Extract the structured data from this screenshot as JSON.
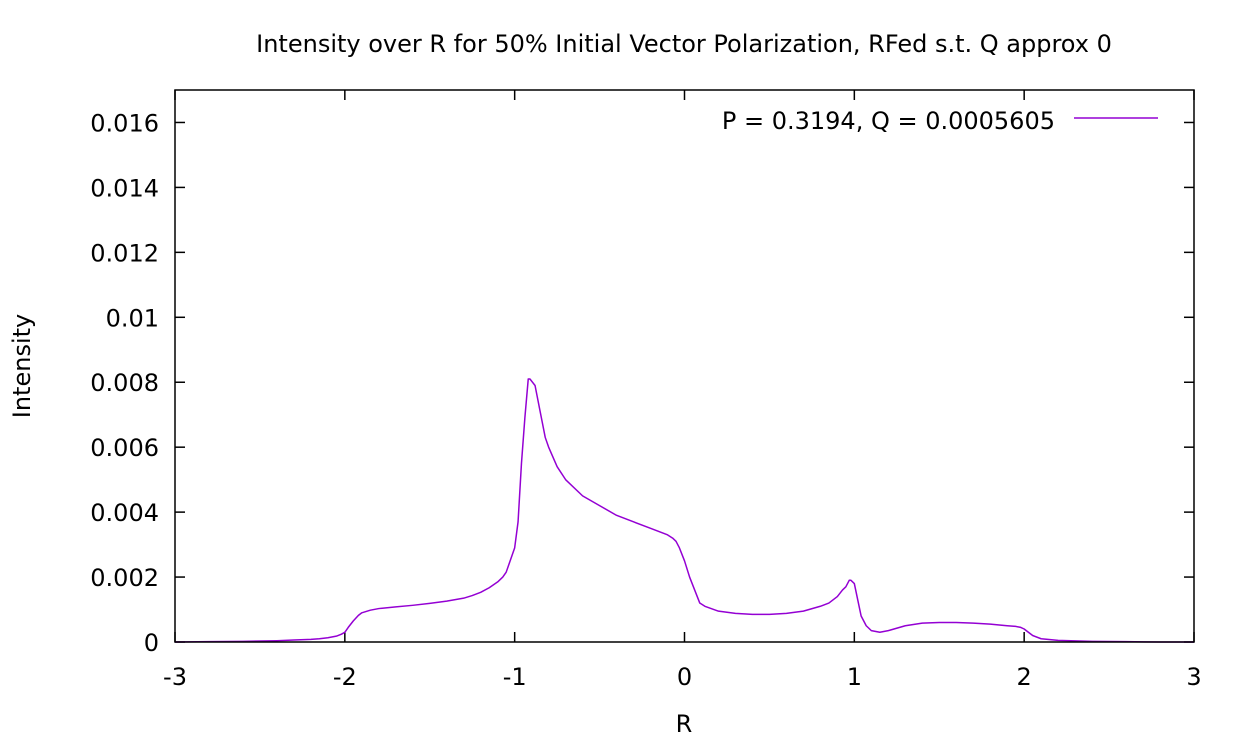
{
  "chart_data": {
    "type": "line",
    "title": "Intensity over R for 50% Initial Vector Polarization, RFed s.t. Q approx 0",
    "xlabel": "R",
    "ylabel": "Intensity",
    "xlim": [
      -3,
      3
    ],
    "ylim": [
      0,
      0.017
    ],
    "xticks": [
      -3,
      -2,
      -1,
      0,
      1,
      2,
      3
    ],
    "xtick_labels": [
      "-3",
      "-2",
      "-1",
      "0",
      "1",
      "2",
      "3"
    ],
    "yticks": [
      0,
      0.002,
      0.004,
      0.006,
      0.008,
      0.01,
      0.012,
      0.014,
      0.016
    ],
    "ytick_labels": [
      "0",
      "0.002",
      "0.004",
      "0.006",
      "0.008",
      "0.01",
      "0.012",
      "0.014",
      "0.016"
    ],
    "grid": false,
    "legend_position": "top-right",
    "series": [
      {
        "name": "P = 0.3194, Q = 0.0005605",
        "color": "#9400d3",
        "x": [
          -3.0,
          -2.8,
          -2.6,
          -2.4,
          -2.3,
          -2.2,
          -2.15,
          -2.1,
          -2.05,
          -2.02,
          -2.0,
          -1.98,
          -1.95,
          -1.92,
          -1.9,
          -1.85,
          -1.8,
          -1.7,
          -1.6,
          -1.5,
          -1.4,
          -1.3,
          -1.25,
          -1.2,
          -1.15,
          -1.1,
          -1.07,
          -1.05,
          -1.03,
          -1.0,
          -0.98,
          -0.96,
          -0.94,
          -0.93,
          -0.92,
          -0.91,
          -0.88,
          -0.85,
          -0.82,
          -0.8,
          -0.75,
          -0.7,
          -0.6,
          -0.5,
          -0.4,
          -0.3,
          -0.2,
          -0.15,
          -0.1,
          -0.07,
          -0.05,
          -0.03,
          0.0,
          0.03,
          0.06,
          0.09,
          0.12,
          0.2,
          0.3,
          0.4,
          0.5,
          0.6,
          0.7,
          0.8,
          0.85,
          0.9,
          0.93,
          0.95,
          0.97,
          0.98,
          1.0,
          1.02,
          1.04,
          1.07,
          1.1,
          1.15,
          1.2,
          1.3,
          1.4,
          1.5,
          1.6,
          1.7,
          1.8,
          1.9,
          1.95,
          1.98,
          2.0,
          2.02,
          2.05,
          2.1,
          2.2,
          2.4,
          2.6,
          2.8,
          3.0
        ],
        "y": [
          0.0,
          1e-05,
          2e-05,
          4e-05,
          6e-05,
          8e-05,
          0.0001,
          0.00013,
          0.00018,
          0.00024,
          0.0003,
          0.00045,
          0.00065,
          0.00082,
          0.0009,
          0.00098,
          0.00103,
          0.00108,
          0.00113,
          0.00119,
          0.00126,
          0.00135,
          0.00143,
          0.00153,
          0.00167,
          0.00185,
          0.002,
          0.00215,
          0.00245,
          0.0029,
          0.0037,
          0.0055,
          0.0069,
          0.0075,
          0.0081,
          0.0081,
          0.0079,
          0.0071,
          0.0063,
          0.006,
          0.0054,
          0.005,
          0.0045,
          0.0042,
          0.0039,
          0.0037,
          0.0035,
          0.0034,
          0.0033,
          0.0032,
          0.0031,
          0.0029,
          0.0025,
          0.002,
          0.0016,
          0.0012,
          0.0011,
          0.00095,
          0.00088,
          0.00085,
          0.00085,
          0.00088,
          0.00095,
          0.0011,
          0.0012,
          0.0014,
          0.0016,
          0.0017,
          0.0019,
          0.0019,
          0.0018,
          0.0013,
          0.0008,
          0.0005,
          0.00035,
          0.0003,
          0.00035,
          0.0005,
          0.00058,
          0.0006,
          0.0006,
          0.00058,
          0.00055,
          0.0005,
          0.00048,
          0.00045,
          0.0004,
          0.00032,
          0.0002,
          0.0001,
          5e-05,
          2e-05,
          1e-05,
          0.0,
          0.0
        ]
      }
    ]
  }
}
